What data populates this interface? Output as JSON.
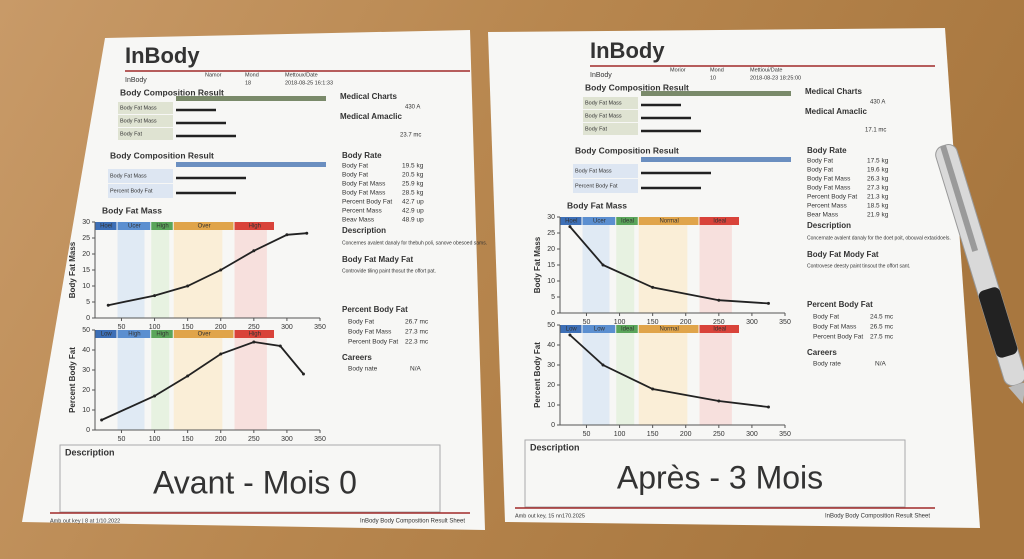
{
  "sheets": [
    {
      "logo": "InBody",
      "header": [
        "InBody",
        "Namor",
        "Mond",
        "Mettoux/Date",
        "18",
        "2018-08-25 16:1:33"
      ],
      "sections": [
        "Body Composition Result",
        "Body Composition Result",
        "Body Fat Mass"
      ],
      "rows_top": [
        "Body Fat Mass",
        "Body Fat Mass",
        "Body Fat"
      ],
      "rows_mid": [
        "Body Fat Mass",
        "Percent Body Fat"
      ],
      "charts": [
        {
          "type": "line",
          "ylabel": "Body Fat Mass",
          "bands": [
            "Hoel",
            "Ucer",
            "High",
            "Over",
            "High"
          ],
          "x": [
            30,
            100,
            150,
            200,
            250,
            300,
            330
          ],
          "values": [
            4,
            7,
            10,
            15,
            21,
            26,
            26.5
          ],
          "xlim": [
            10,
            350
          ],
          "ylim": [
            0,
            30
          ],
          "xticks": [
            50,
            100,
            150,
            200,
            250,
            300,
            350
          ],
          "yticks": [
            0,
            5,
            10,
            15,
            20,
            25,
            30
          ]
        },
        {
          "type": "line",
          "ylabel": "Percent Body Fat",
          "bands": [
            "Low",
            "High",
            "High",
            "Over",
            "High"
          ],
          "x": [
            20,
            100,
            150,
            200,
            250,
            290,
            325
          ],
          "values": [
            5,
            17,
            27,
            38,
            44,
            42,
            28
          ],
          "xlim": [
            10,
            350
          ],
          "ylim": [
            0,
            50
          ],
          "xticks": [
            50,
            100,
            150,
            200,
            250,
            300,
            350
          ],
          "yticks": [
            0,
            10,
            20,
            30,
            40,
            50
          ]
        }
      ],
      "right": {
        "medical": "Medical Charts",
        "medical_value": "430 A",
        "amaclic": "Medical Amaclic",
        "amaclic_value": "23.7 mc",
        "body_rate": "Body Rate",
        "rate_rows": [
          [
            "Body Fat",
            "19.5 kg"
          ],
          [
            "Body Fat",
            "20.5 kg"
          ],
          [
            "Body Fat Mass",
            "25.9 kg"
          ],
          [
            "Body Fat Mass",
            "28.5 kg"
          ],
          [
            "Percent Body Fat",
            "42.7 up"
          ],
          [
            "Percent Mass",
            "42.9 up"
          ],
          [
            "Beav Mass",
            "48.9 up"
          ]
        ],
        "description": "Description",
        "description_text": "Concernes avalent danaly for thebuh poli, sanove obesoed sams.",
        "mady": "Body Fat Mady Fat",
        "mady_text": "Controvide tiling paint thosut the offort pat.",
        "pbf": "Percent Body Fat",
        "pbf_rows": [
          [
            "Body Fat",
            "26.7 mc"
          ],
          [
            "Body Fat Mass",
            "27.3 mc"
          ],
          [
            "Percent Body Fat",
            "22.3 mc"
          ]
        ],
        "careers": "Careers",
        "careers_row": [
          "Body nate",
          "N/A"
        ]
      },
      "description": "Description",
      "caption": "Avant - Mois 0",
      "footer_left": "Amb out key | 8 at 1/10.2022",
      "footer_right": "InBody Body Composition Result Sheet"
    },
    {
      "logo": "InBody",
      "header": [
        "InBody",
        "Morior",
        "Mond",
        "Mettioui/Date",
        "10",
        "2018-08-23 18:25:00"
      ],
      "sections": [
        "Body Composition Result",
        "Body Composition Result",
        "Body Fat Mass"
      ],
      "rows_top": [
        "Body Fat Mass",
        "Body Fat Mass",
        "Body Fat"
      ],
      "rows_mid": [
        "Body Fat Mass",
        "Percent Body Fat"
      ],
      "charts": [
        {
          "type": "line",
          "ylabel": "Body Fat Mass",
          "bands": [
            "Hoel",
            "Ucer",
            "Ideal",
            "Normal",
            "Ideal"
          ],
          "x": [
            25,
            75,
            150,
            250,
            325
          ],
          "values": [
            27,
            15,
            8,
            4,
            3
          ],
          "xlim": [
            10,
            350
          ],
          "ylim": [
            0,
            30
          ],
          "xticks": [
            50,
            100,
            150,
            200,
            250,
            300,
            350
          ],
          "yticks": [
            0,
            5,
            10,
            15,
            20,
            25,
            30
          ]
        },
        {
          "type": "line",
          "ylabel": "Percent Body Fat",
          "bands": [
            "Low",
            "Low",
            "Ideal",
            "Normal",
            "Ideal"
          ],
          "x": [
            25,
            75,
            150,
            250,
            325
          ],
          "values": [
            45,
            30,
            18,
            12,
            9
          ],
          "xlim": [
            10,
            350
          ],
          "ylim": [
            0,
            50
          ],
          "xticks": [
            50,
            100,
            150,
            200,
            250,
            300,
            350
          ],
          "yticks": [
            0,
            10,
            20,
            30,
            40,
            50
          ]
        }
      ],
      "right": {
        "medical": "Medical Charts",
        "medical_value": "430 A",
        "amaclic": "Medical Amaclic",
        "amaclic_value": "17.1 mc",
        "body_rate": "Body Rate",
        "rate_rows": [
          [
            "Body Fat",
            "17.5 kg"
          ],
          [
            "Body Fat",
            "19.6 kg"
          ],
          [
            "Body Fat Mass",
            "26.3 kg"
          ],
          [
            "Body Fat Mass",
            "27.3 kg"
          ],
          [
            "Percent Body Fat",
            "21.3 kg"
          ],
          [
            "Percent Mass",
            "18.5 kg"
          ],
          [
            "Bear Mass",
            "21.9 kg"
          ]
        ],
        "description": "Description",
        "description_text": "Concernate avalent danaly for the doet poit, obouval extacidoels.",
        "mady": "Body Fat Mody Fat",
        "mady_text": "Controvese deesty paint tinsout the offort sant.",
        "pbf": "Percent Body Fat",
        "pbf_rows": [
          [
            "Body Fat",
            "24.5 mc"
          ],
          [
            "Body Fat Mass",
            "26.5 mc"
          ],
          [
            "Percent Body Fat",
            "27.5 mc"
          ]
        ],
        "careers": "Careers",
        "careers_row": [
          "Body rate",
          "N/A"
        ]
      },
      "description": "Description",
      "caption": "Après - 3 Mois",
      "footer_left": "Amb out key, 15 nn170.2025",
      "footer_right": "InBody Body Composition Result Sheet"
    }
  ]
}
